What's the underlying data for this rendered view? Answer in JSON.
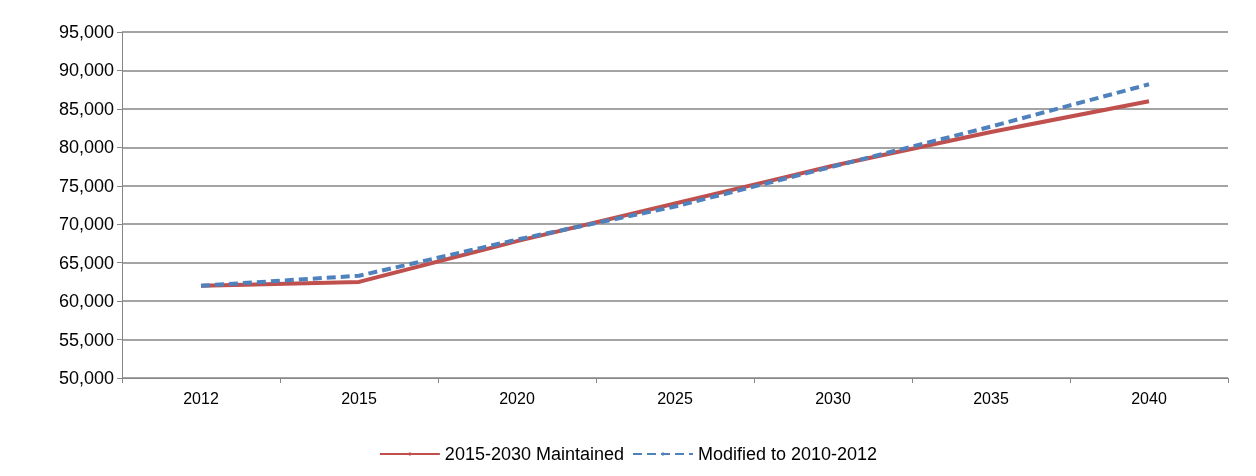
{
  "chart_data": {
    "type": "line",
    "categories": [
      "2012",
      "2015",
      "2020",
      "2025",
      "2030",
      "2035",
      "2040"
    ],
    "series": [
      {
        "name": "2015-2030 Maintained",
        "color": "#c0504d",
        "line_style": "solid",
        "values": [
          62000,
          62500,
          67800,
          72700,
          77600,
          82000,
          86000
        ]
      },
      {
        "name": "Modified to 2010-2012",
        "color": "#4f81bd",
        "line_style": "dashed",
        "values": [
          62000,
          63300,
          68000,
          72300,
          77500,
          82700,
          88200
        ]
      }
    ],
    "ylim": [
      50000,
      95000
    ],
    "yticks": [
      {
        "value": 50000,
        "label": "50,000"
      },
      {
        "value": 55000,
        "label": "55,000"
      },
      {
        "value": 60000,
        "label": "60,000"
      },
      {
        "value": 65000,
        "label": "65,000"
      },
      {
        "value": 70000,
        "label": "70,000"
      },
      {
        "value": 75000,
        "label": "75,000"
      },
      {
        "value": 80000,
        "label": "80,000"
      },
      {
        "value": 85000,
        "label": "85,000"
      },
      {
        "value": 90000,
        "label": "90,000"
      },
      {
        "value": 95000,
        "label": "95,000"
      }
    ],
    "grid": "y",
    "legend": "bottom",
    "marker": "none"
  }
}
